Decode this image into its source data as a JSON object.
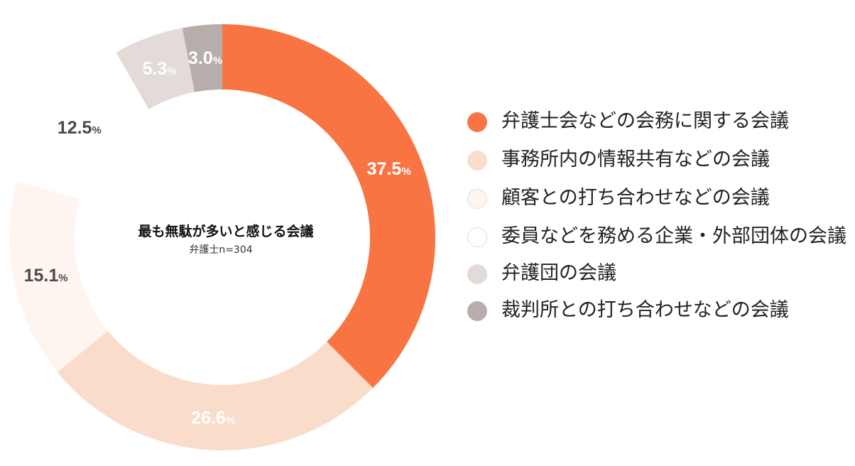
{
  "chart_data": {
    "type": "pie",
    "subtype": "donut",
    "center_title": "最も無駄が多いと感じる会議",
    "center_subtitle": "弁護士n=304",
    "unit": "%",
    "slices": [
      {
        "label": "弁護士会などの会務に関する会議",
        "value": 37.5,
        "display": "37.5",
        "color": "#f87543",
        "label_color": "#ffffff"
      },
      {
        "label": "事務所内の情報共有などの会議",
        "value": 26.6,
        "display": "26.6",
        "color": "#fadcca",
        "label_color": "#ffffff"
      },
      {
        "label": "顧客との打ち合わせなどの会議",
        "value": 15.1,
        "display": "15.1",
        "color": "#fef5f1",
        "label_color": "#4a4a4a"
      },
      {
        "label": "委員などを務める企業・外部団体の会議",
        "value": 12.5,
        "display": "12.5",
        "color": "#ffffff",
        "label_color": "#4a4a4a"
      },
      {
        "label": "弁護団の会議",
        "value": 5.3,
        "display": "5.3",
        "color": "#e3dbd8",
        "label_color": "#ffffff"
      },
      {
        "label": "裁判所との打ち合わせなどの会議",
        "value": 3.0,
        "display": "3.0",
        "color": "#b7aeac",
        "label_color": "#ffffff"
      }
    ],
    "legend_position": "right"
  },
  "legend_border_color": "#dddddd"
}
